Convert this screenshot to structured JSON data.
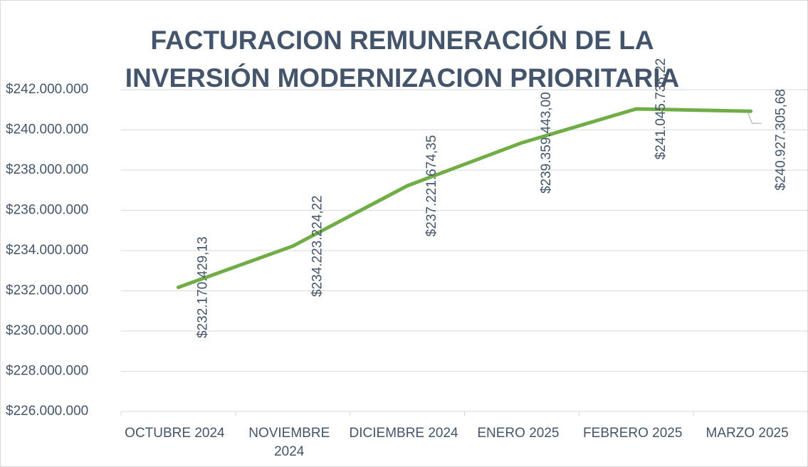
{
  "chart_data": {
    "type": "line",
    "title": "FACTURACION REMUNERACIÓN DE LA INVERSIÓN MODERNIZACION PRIORITARIA",
    "categories": [
      "OCTUBRE 2024",
      "NOVIEMBRE 2024",
      "DICIEMBRE 2024",
      "ENERO 2025",
      "FEBRERO 2025",
      "MARZO 2025"
    ],
    "series": [
      {
        "name": "Facturación",
        "color": "#70ad47",
        "values": [
          232170429.13,
          234223224.22,
          237221674.35,
          239359443.0,
          241045736.22,
          240927305.68
        ],
        "value_labels": [
          "$232.170.429,13",
          "$234.223.224,22",
          "$237.221.674,35",
          "$239.359.443,00",
          "$241.045.736,22",
          "$240.927.305,68"
        ]
      }
    ],
    "ylim": [
      226000000,
      242000000
    ],
    "yticks": [
      {
        "value": 226000000,
        "label": "$226.000.000"
      },
      {
        "value": 228000000,
        "label": "$228.000.000"
      },
      {
        "value": 230000000,
        "label": "$230.000.000"
      },
      {
        "value": 232000000,
        "label": "$232.000.000"
      },
      {
        "value": 234000000,
        "label": "$234.000.000"
      },
      {
        "value": 236000000,
        "label": "$236.000.000"
      },
      {
        "value": 238000000,
        "label": "$238.000.000"
      },
      {
        "value": 240000000,
        "label": "$240.000.000"
      },
      {
        "value": 242000000,
        "label": "$242.000.000"
      }
    ],
    "grid": true
  }
}
